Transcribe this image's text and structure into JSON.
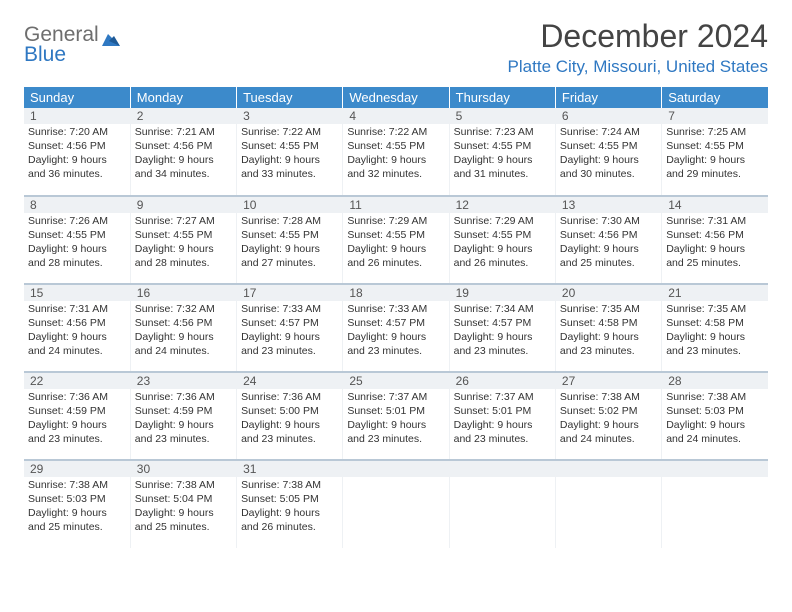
{
  "brand": {
    "word1": "General",
    "word2": "Blue"
  },
  "title": "December 2024",
  "location": "Platte City, Missouri, United States",
  "colors": {
    "header_bg": "#3c8acb",
    "header_text": "#ffffff",
    "row_sep": "#b9c8d6",
    "daynum_bg": "#eef1f4",
    "accent": "#2f78c2",
    "logo_gray": "#6e6e6e"
  },
  "day_labels": [
    "Sunday",
    "Monday",
    "Tuesday",
    "Wednesday",
    "Thursday",
    "Friday",
    "Saturday"
  ],
  "weeks": [
    [
      {
        "n": "1",
        "sunrise": "7:20 AM",
        "sunset": "4:56 PM",
        "dl": "9 hours and 36 minutes."
      },
      {
        "n": "2",
        "sunrise": "7:21 AM",
        "sunset": "4:56 PM",
        "dl": "9 hours and 34 minutes."
      },
      {
        "n": "3",
        "sunrise": "7:22 AM",
        "sunset": "4:55 PM",
        "dl": "9 hours and 33 minutes."
      },
      {
        "n": "4",
        "sunrise": "7:22 AM",
        "sunset": "4:55 PM",
        "dl": "9 hours and 32 minutes."
      },
      {
        "n": "5",
        "sunrise": "7:23 AM",
        "sunset": "4:55 PM",
        "dl": "9 hours and 31 minutes."
      },
      {
        "n": "6",
        "sunrise": "7:24 AM",
        "sunset": "4:55 PM",
        "dl": "9 hours and 30 minutes."
      },
      {
        "n": "7",
        "sunrise": "7:25 AM",
        "sunset": "4:55 PM",
        "dl": "9 hours and 29 minutes."
      }
    ],
    [
      {
        "n": "8",
        "sunrise": "7:26 AM",
        "sunset": "4:55 PM",
        "dl": "9 hours and 28 minutes."
      },
      {
        "n": "9",
        "sunrise": "7:27 AM",
        "sunset": "4:55 PM",
        "dl": "9 hours and 28 minutes."
      },
      {
        "n": "10",
        "sunrise": "7:28 AM",
        "sunset": "4:55 PM",
        "dl": "9 hours and 27 minutes."
      },
      {
        "n": "11",
        "sunrise": "7:29 AM",
        "sunset": "4:55 PM",
        "dl": "9 hours and 26 minutes."
      },
      {
        "n": "12",
        "sunrise": "7:29 AM",
        "sunset": "4:55 PM",
        "dl": "9 hours and 26 minutes."
      },
      {
        "n": "13",
        "sunrise": "7:30 AM",
        "sunset": "4:56 PM",
        "dl": "9 hours and 25 minutes."
      },
      {
        "n": "14",
        "sunrise": "7:31 AM",
        "sunset": "4:56 PM",
        "dl": "9 hours and 25 minutes."
      }
    ],
    [
      {
        "n": "15",
        "sunrise": "7:31 AM",
        "sunset": "4:56 PM",
        "dl": "9 hours and 24 minutes."
      },
      {
        "n": "16",
        "sunrise": "7:32 AM",
        "sunset": "4:56 PM",
        "dl": "9 hours and 24 minutes."
      },
      {
        "n": "17",
        "sunrise": "7:33 AM",
        "sunset": "4:57 PM",
        "dl": "9 hours and 23 minutes."
      },
      {
        "n": "18",
        "sunrise": "7:33 AM",
        "sunset": "4:57 PM",
        "dl": "9 hours and 23 minutes."
      },
      {
        "n": "19",
        "sunrise": "7:34 AM",
        "sunset": "4:57 PM",
        "dl": "9 hours and 23 minutes."
      },
      {
        "n": "20",
        "sunrise": "7:35 AM",
        "sunset": "4:58 PM",
        "dl": "9 hours and 23 minutes."
      },
      {
        "n": "21",
        "sunrise": "7:35 AM",
        "sunset": "4:58 PM",
        "dl": "9 hours and 23 minutes."
      }
    ],
    [
      {
        "n": "22",
        "sunrise": "7:36 AM",
        "sunset": "4:59 PM",
        "dl": "9 hours and 23 minutes."
      },
      {
        "n": "23",
        "sunrise": "7:36 AM",
        "sunset": "4:59 PM",
        "dl": "9 hours and 23 minutes."
      },
      {
        "n": "24",
        "sunrise": "7:36 AM",
        "sunset": "5:00 PM",
        "dl": "9 hours and 23 minutes."
      },
      {
        "n": "25",
        "sunrise": "7:37 AM",
        "sunset": "5:01 PM",
        "dl": "9 hours and 23 minutes."
      },
      {
        "n": "26",
        "sunrise": "7:37 AM",
        "sunset": "5:01 PM",
        "dl": "9 hours and 23 minutes."
      },
      {
        "n": "27",
        "sunrise": "7:38 AM",
        "sunset": "5:02 PM",
        "dl": "9 hours and 24 minutes."
      },
      {
        "n": "28",
        "sunrise": "7:38 AM",
        "sunset": "5:03 PM",
        "dl": "9 hours and 24 minutes."
      }
    ],
    [
      {
        "n": "29",
        "sunrise": "7:38 AM",
        "sunset": "5:03 PM",
        "dl": "9 hours and 25 minutes."
      },
      {
        "n": "30",
        "sunrise": "7:38 AM",
        "sunset": "5:04 PM",
        "dl": "9 hours and 25 minutes."
      },
      {
        "n": "31",
        "sunrise": "7:38 AM",
        "sunset": "5:05 PM",
        "dl": "9 hours and 26 minutes."
      },
      null,
      null,
      null,
      null
    ]
  ],
  "labels": {
    "sunrise": "Sunrise:",
    "sunset": "Sunset:",
    "daylight": "Daylight:"
  }
}
